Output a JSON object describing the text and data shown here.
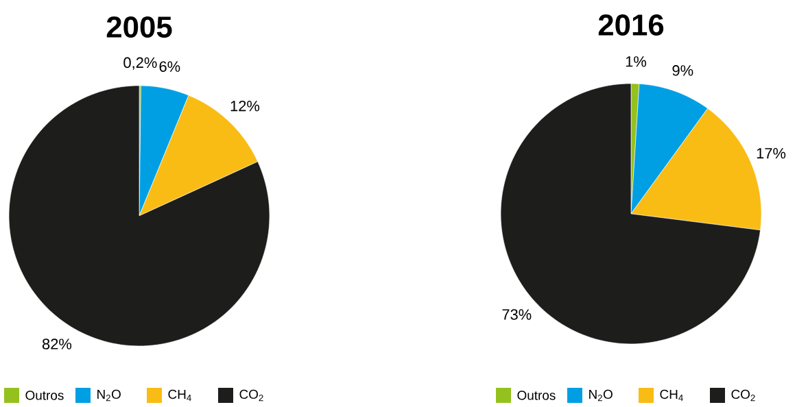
{
  "chart_data": [
    {
      "type": "pie",
      "title": "2005",
      "categories": [
        "Outros",
        "N$_{2}$O",
        "CH$_{4}$",
        "CO$_{2}$"
      ],
      "values": [
        0.2,
        6,
        12,
        82
      ],
      "value_labels": [
        "0,2%",
        "6%",
        "12%",
        "82%"
      ],
      "colors": [
        "#95c11f",
        "#009fe3",
        "#f9bc15",
        "#1d1d1b"
      ],
      "legend": "bottom"
    },
    {
      "type": "pie",
      "title": "2016",
      "categories": [
        "Outros",
        "N$_{2}$O",
        "CH$_{4}$",
        "CO$_{2}$"
      ],
      "values": [
        1,
        9,
        17,
        73
      ],
      "value_labels": [
        "1%",
        "9%",
        "17%",
        "73%"
      ],
      "colors": [
        "#95c11f",
        "#009fe3",
        "#f9bc15",
        "#1d1d1b"
      ],
      "legend": "bottom"
    }
  ]
}
